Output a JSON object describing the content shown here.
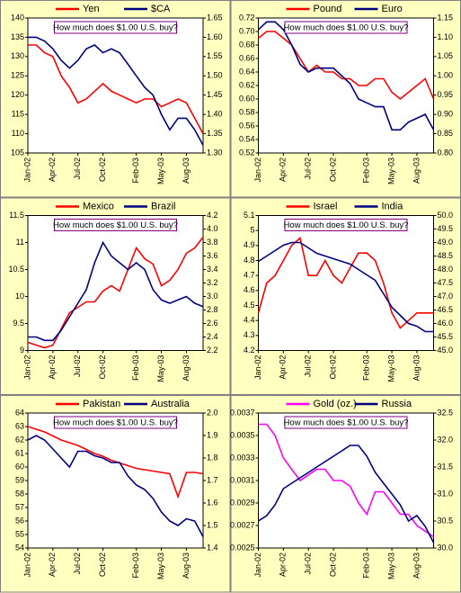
{
  "chart_data": [
    {
      "type": "line",
      "annotation": "How much does $1.00 U.S. buy?",
      "categories": [
        "Jan-02",
        null,
        null,
        "Apr-02",
        null,
        null,
        "Jul-02",
        null,
        null,
        "Oct-02",
        null,
        null,
        null,
        "Feb-03",
        null,
        null,
        "May-03",
        null,
        null,
        "Aug-03",
        null,
        null
      ],
      "series": [
        {
          "name": "Yen",
          "color": "#ff0000",
          "axis": "y",
          "values": [
            133,
            133,
            131,
            130,
            125,
            122,
            118,
            119,
            121,
            123,
            121,
            120,
            119,
            118,
            119,
            119,
            117,
            118,
            119,
            118,
            114,
            110
          ]
        },
        {
          "name": "$CA",
          "color": "#000080",
          "axis": "y2",
          "values": [
            1.6,
            1.6,
            1.59,
            1.57,
            1.54,
            1.52,
            1.54,
            1.57,
            1.58,
            1.56,
            1.57,
            1.56,
            1.53,
            1.5,
            1.47,
            1.45,
            1.4,
            1.36,
            1.39,
            1.39,
            1.36,
            1.32
          ]
        }
      ],
      "ylim": [
        105,
        140
      ],
      "yticks": [
        105,
        110,
        115,
        120,
        125,
        130,
        135,
        140
      ],
      "y2lim": [
        1.3,
        1.65
      ],
      "y2ticks": [
        {
          "value": 1.3,
          "label": "1.30"
        },
        1.35,
        {
          "value": 1.4,
          "label": "1.40"
        },
        1.45,
        {
          "value": 1.5,
          "label": "1.50"
        },
        1.55,
        {
          "value": 1.6,
          "label": "1.60"
        },
        1.65
      ]
    },
    {
      "type": "line",
      "annotation": "How much does $1.00 U.S. buy?",
      "categories": [
        "Jan-02",
        null,
        null,
        "Apr-02",
        null,
        null,
        "Jul-02",
        null,
        null,
        "Oct-02",
        null,
        null,
        null,
        "Feb-03",
        null,
        null,
        "May-03",
        null,
        null,
        "Aug-03",
        null,
        null
      ],
      "series": [
        {
          "name": "Pound",
          "color": "#ff0000",
          "axis": "y",
          "values": [
            0.69,
            0.7,
            0.7,
            0.69,
            0.68,
            0.66,
            0.64,
            0.65,
            0.64,
            0.64,
            0.63,
            0.63,
            0.62,
            0.62,
            0.63,
            0.63,
            0.61,
            0.6,
            0.61,
            0.62,
            0.63,
            0.6
          ]
        },
        {
          "name": "Euro",
          "color": "#000080",
          "axis": "y2",
          "values": [
            1.12,
            1.14,
            1.14,
            1.12,
            1.08,
            1.03,
            1.01,
            1.02,
            1.02,
            1.02,
            1.0,
            0.98,
            0.94,
            0.93,
            0.92,
            0.92,
            0.86,
            0.86,
            0.88,
            0.89,
            0.9,
            0.86
          ]
        }
      ],
      "ylim": [
        0.52,
        0.72
      ],
      "yticks": [
        0.52,
        0.54,
        0.56,
        0.58,
        {
          "value": 0.6,
          "label": "0.60"
        },
        0.62,
        0.64,
        0.66,
        0.68,
        {
          "value": 0.7,
          "label": "0.70"
        },
        0.72
      ],
      "y2lim": [
        0.8,
        1.15
      ],
      "y2ticks": [
        {
          "value": 0.8,
          "label": "0.80"
        },
        0.85,
        {
          "value": 0.9,
          "label": "0.90"
        },
        0.95,
        {
          "value": 1.0,
          "label": "1.00"
        },
        1.05,
        {
          "value": 1.1,
          "label": "1.10"
        },
        1.15
      ]
    },
    {
      "type": "line",
      "annotation": "How much does $1.00 U.S. buy?",
      "categories": [
        "Jan-02",
        null,
        null,
        "Apr-02",
        null,
        null,
        "Jul-02",
        null,
        null,
        "Oct-02",
        null,
        null,
        null,
        "Feb-03",
        null,
        null,
        "May-03",
        null,
        null,
        "Aug-03",
        null,
        null
      ],
      "series": [
        {
          "name": "Mexico",
          "color": "#ff0000",
          "axis": "y",
          "values": [
            9.15,
            9.1,
            9.05,
            9.1,
            9.4,
            9.7,
            9.8,
            9.9,
            9.9,
            10.1,
            10.2,
            10.1,
            10.5,
            10.9,
            10.7,
            10.6,
            10.2,
            10.3,
            10.5,
            10.8,
            10.9,
            11.1
          ]
        },
        {
          "name": "Brazil",
          "color": "#000080",
          "axis": "y2",
          "values": [
            2.4,
            2.4,
            2.35,
            2.35,
            2.5,
            2.7,
            2.9,
            3.1,
            3.5,
            3.8,
            3.6,
            3.5,
            3.4,
            3.5,
            3.4,
            3.1,
            2.95,
            2.9,
            2.95,
            3.0,
            2.9,
            2.85
          ]
        }
      ],
      "ylim": [
        9,
        11.5
      ],
      "yticks": [
        9,
        9.5,
        10,
        10.5,
        11,
        11.5
      ],
      "y2lim": [
        2.2,
        4.2
      ],
      "y2ticks": [
        2.2,
        2.4,
        2.6,
        2.8,
        {
          "value": 3.0,
          "label": "3.0"
        },
        3.2,
        3.4,
        3.6,
        3.8,
        {
          "value": 4.0,
          "label": "4.0"
        },
        4.2
      ]
    },
    {
      "type": "line",
      "annotation": "How much does $1.00 U.S. buy?",
      "categories": [
        "Jan-02",
        null,
        null,
        "Apr-02",
        null,
        null,
        "Jul-02",
        null,
        null,
        "Oct-02",
        null,
        null,
        null,
        "Feb-03",
        null,
        null,
        "May-03",
        null,
        null,
        "Aug-03",
        null,
        null
      ],
      "series": [
        {
          "name": "Israel",
          "color": "#ff0000",
          "axis": "y",
          "values": [
            4.45,
            4.65,
            4.7,
            4.8,
            4.9,
            4.95,
            4.7,
            4.7,
            4.8,
            4.7,
            4.65,
            4.75,
            4.85,
            4.85,
            4.8,
            4.65,
            4.45,
            4.35,
            4.4,
            4.45,
            4.45,
            4.45
          ]
        },
        {
          "name": "India",
          "color": "#000080",
          "axis": "y2",
          "values": [
            48.3,
            48.5,
            48.7,
            48.9,
            49.0,
            49.0,
            48.8,
            48.6,
            48.5,
            48.4,
            48.3,
            48.2,
            48.0,
            47.8,
            47.6,
            47.1,
            46.6,
            46.3,
            46.0,
            45.9,
            45.7,
            45.7
          ]
        }
      ],
      "ylim": [
        4.2,
        5.1
      ],
      "yticks": [
        4.2,
        4.3,
        4.4,
        4.5,
        4.6,
        4.7,
        4.8,
        4.9,
        5,
        5.1
      ],
      "y2lim": [
        45,
        50
      ],
      "y2ticks": [
        {
          "value": 45,
          "label": "45.0"
        },
        45.5,
        {
          "value": 46,
          "label": "46.0"
        },
        46.5,
        {
          "value": 47,
          "label": "47.0"
        },
        47.5,
        {
          "value": 48,
          "label": "48.0"
        },
        48.5,
        {
          "value": 49,
          "label": "49.0"
        },
        49.5,
        {
          "value": 50,
          "label": "50.0"
        }
      ]
    },
    {
      "type": "line",
      "annotation": "How much does $1.00 U.S. buy?",
      "categories": [
        "Jan-02",
        null,
        null,
        "Apr-02",
        null,
        null,
        "Jul-02",
        null,
        null,
        "Oct-02",
        null,
        null,
        null,
        "Feb-03",
        null,
        null,
        "May-03",
        null,
        null,
        "Aug-03",
        null,
        null
      ],
      "series": [
        {
          "name": "Pakistan",
          "color": "#ff0000",
          "axis": "y",
          "values": [
            63,
            62.8,
            62.6,
            62.3,
            62,
            61.8,
            61.6,
            61.3,
            61,
            60.8,
            60.5,
            60.3,
            60.1,
            59.9,
            59.8,
            59.7,
            59.6,
            59.5,
            57.8,
            59.6,
            59.6,
            59.5
          ]
        },
        {
          "name": "Australia",
          "color": "#000080",
          "axis": "y2",
          "values": [
            1.88,
            1.9,
            1.88,
            1.84,
            1.8,
            1.76,
            1.83,
            1.83,
            1.81,
            1.8,
            1.78,
            1.78,
            1.72,
            1.68,
            1.66,
            1.62,
            1.56,
            1.52,
            1.5,
            1.53,
            1.52,
            1.45
          ]
        }
      ],
      "ylim": [
        54,
        64
      ],
      "yticks": [
        54,
        55,
        56,
        57,
        58,
        59,
        60,
        61,
        62,
        63,
        64
      ],
      "y2lim": [
        1.4,
        2.0
      ],
      "y2ticks": [
        1.4,
        1.5,
        1.6,
        1.7,
        1.8,
        1.9,
        {
          "value": 2.0,
          "label": "2.0"
        }
      ]
    },
    {
      "type": "line",
      "annotation": "How much does $1.00 U.S. buy?",
      "categories": [
        "Jan-02",
        null,
        null,
        "Apr-02",
        null,
        null,
        "Jul-02",
        null,
        null,
        "Oct-02",
        null,
        null,
        null,
        "Feb-03",
        null,
        null,
        "May-03",
        null,
        null,
        "Aug-03",
        null,
        null
      ],
      "series": [
        {
          "name": "Gold (oz.)",
          "color": "#ff00ff",
          "axis": "y",
          "values": [
            0.0036,
            0.0036,
            0.0035,
            0.0033,
            0.0032,
            0.0031,
            0.00315,
            0.0032,
            0.0032,
            0.0031,
            0.0031,
            0.00305,
            0.0029,
            0.0028,
            0.003,
            0.003,
            0.0029,
            0.0028,
            0.0028,
            0.0027,
            0.00265,
            0.0026
          ]
        },
        {
          "name": "Russia",
          "color": "#000080",
          "axis": "y2",
          "values": [
            30.5,
            30.6,
            30.8,
            31.1,
            31.2,
            31.3,
            31.4,
            31.5,
            31.6,
            31.7,
            31.8,
            31.9,
            31.9,
            31.7,
            31.4,
            31.2,
            31.0,
            30.8,
            30.5,
            30.6,
            30.4,
            30.1
          ]
        }
      ],
      "ylim": [
        0.0025,
        0.0037
      ],
      "yticks": [
        0.0025,
        0.0027,
        0.0029,
        0.0031,
        0.0033,
        0.0035,
        0.0037
      ],
      "y2lim": [
        30,
        32.5
      ],
      "y2ticks": [
        {
          "value": 30,
          "label": "30.0"
        },
        30.5,
        {
          "value": 31,
          "label": "31.0"
        },
        31.5,
        {
          "value": 32,
          "label": "32.0"
        },
        32.5
      ]
    }
  ]
}
